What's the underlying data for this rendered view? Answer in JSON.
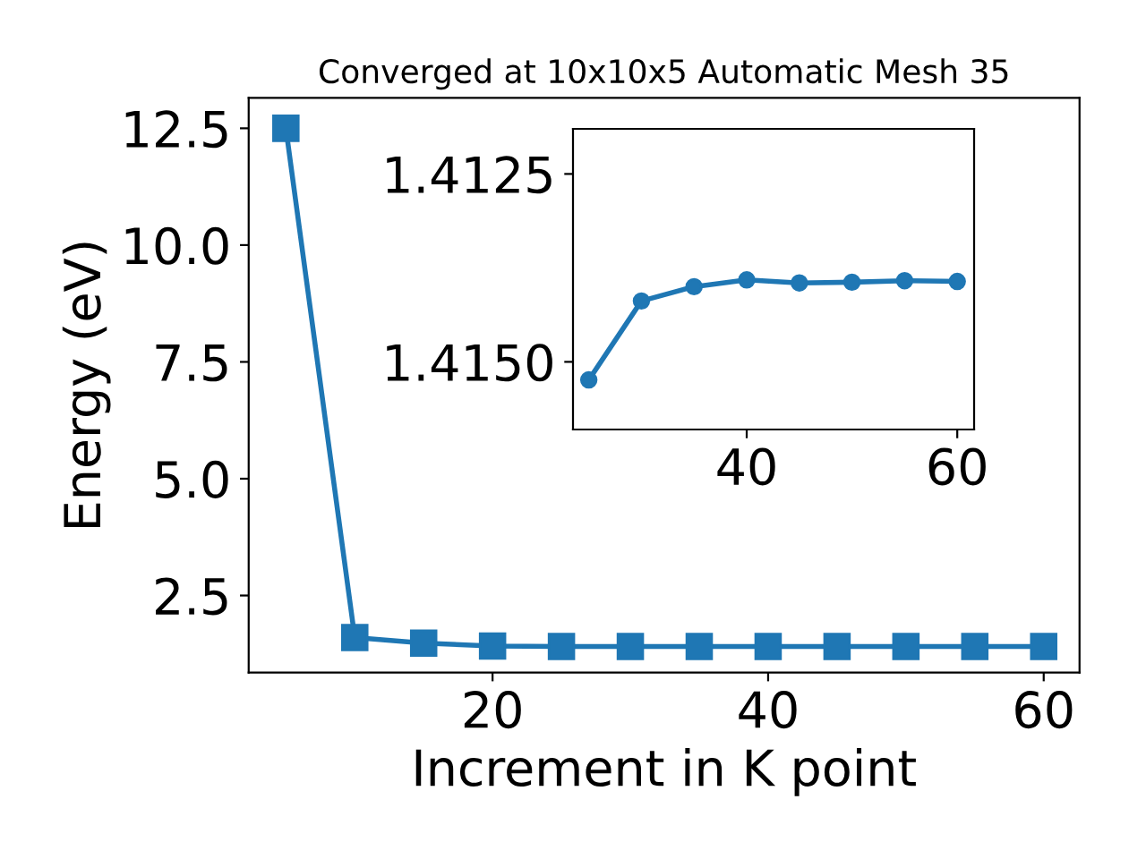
{
  "chart_data": [
    {
      "type": "line",
      "title": "Converged at 10x10x5 Automatic Mesh 35",
      "xlabel": "Increment in K point",
      "ylabel": "Energy (eV)",
      "x": [
        5,
        10,
        15,
        20,
        25,
        30,
        35,
        40,
        45,
        50,
        55,
        60
      ],
      "series": [
        {
          "color": "#1f77b4",
          "values": [
            12.5,
            1.6,
            1.48,
            1.42,
            1.41,
            1.41,
            1.41,
            1.41,
            1.41,
            1.41,
            1.41,
            1.41
          ]
        }
      ],
      "marker": "square",
      "line_style": "solid",
      "grid": false,
      "legend": false,
      "xlim": [
        2.3,
        62.6
      ],
      "ylim": [
        0.85,
        13.15
      ],
      "xticks": [
        20,
        40,
        60
      ],
      "yticks": [
        2.5,
        {
          "value": 5,
          "label": "5.0"
        },
        7.5,
        {
          "value": 10,
          "label": "10.0"
        },
        12.5
      ]
    },
    {
      "type": "line",
      "x": [
        25,
        30,
        35,
        40,
        45,
        50,
        55,
        60
      ],
      "series": [
        {
          "color": "#1f77b4",
          "values": [
            1.41524,
            1.41419,
            1.414,
            1.41391,
            1.41395,
            1.41394,
            1.41392,
            1.41393
          ]
        }
      ],
      "marker": "circle",
      "line_style": "solid",
      "grid": false,
      "legend": false,
      "xlim": [
        23.5,
        61.6
      ],
      "ylim": [
        1.4159,
        1.4119
      ],
      "xticks": [
        40,
        60
      ],
      "yticks": [
        {
          "value": 1.4125,
          "label": "1.4125"
        },
        {
          "value": 1.415,
          "label": "1.4150"
        }
      ]
    }
  ]
}
